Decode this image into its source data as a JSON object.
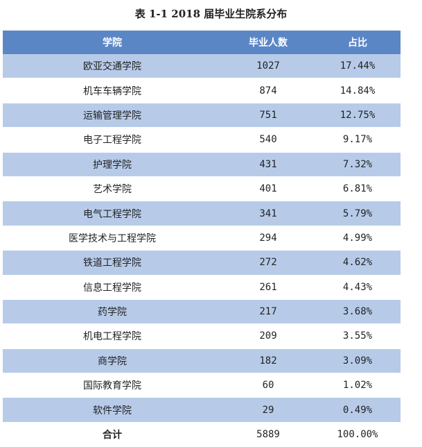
{
  "title": "表 1-1 2018 届毕业生院系分布",
  "headers": [
    "学院",
    "毕业人数",
    "占比"
  ],
  "rows": [
    {
      "college": "欧亚交通学院",
      "count": "1027",
      "pct": "17.44%"
    },
    {
      "college": "机车车辆学院",
      "count": "874",
      "pct": "14.84%"
    },
    {
      "college": "运输管理学院",
      "count": "751",
      "pct": "12.75%"
    },
    {
      "college": "电子工程学院",
      "count": "540",
      "pct": "9.17%"
    },
    {
      "college": "护理学院",
      "count": "431",
      "pct": "7.32%"
    },
    {
      "college": "艺术学院",
      "count": "401",
      "pct": "6.81%"
    },
    {
      "college": "电气工程学院",
      "count": "341",
      "pct": "5.79%"
    },
    {
      "college": "医学技术与工程学院",
      "count": "294",
      "pct": "4.99%"
    },
    {
      "college": "铁道工程学院",
      "count": "272",
      "pct": "4.62%"
    },
    {
      "college": "信息工程学院",
      "count": "261",
      "pct": "4.43%"
    },
    {
      "college": "药学院",
      "count": "217",
      "pct": "3.68%"
    },
    {
      "college": "机电工程学院",
      "count": "209",
      "pct": "3.55%"
    },
    {
      "college": "商学院",
      "count": "182",
      "pct": "3.09%"
    },
    {
      "college": "国际教育学院",
      "count": "60",
      "pct": "1.02%"
    },
    {
      "college": "软件学院",
      "count": "29",
      "pct": "0.49%"
    }
  ],
  "total": {
    "label": "合计",
    "count": "5889",
    "pct": "100.00%"
  },
  "colors": {
    "header": "#5b86c6",
    "band": "#b7cbe9"
  }
}
